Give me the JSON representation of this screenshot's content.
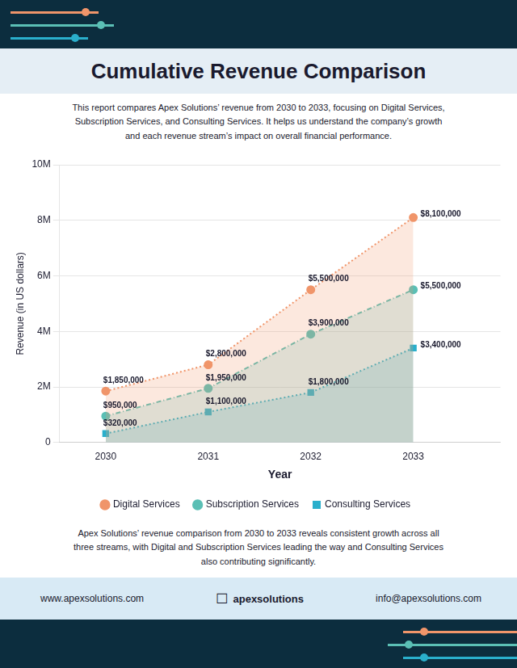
{
  "chart_data": {
    "type": "area",
    "title": "Cumulative Revenue Comparison",
    "subtitle": "This report compares Apex Solutions’ revenue from 2030 to 2033, focusing on Digital Services,\nSubscription Services, and Consulting Services. It helps us understand the company’s growth\nand each revenue stream’s impact on overall financial performance.",
    "x": [
      2030,
      2031,
      2032,
      2033
    ],
    "series": [
      {
        "name": "Digital Services",
        "color": "#F0956A",
        "marker": "circle",
        "line_style": "dotted",
        "values": [
          1850000,
          2800000,
          5500000,
          8100000
        ],
        "value_labels": [
          "$1,850,000",
          "$2,800,000",
          "$5,500,000",
          "$8,100,000"
        ]
      },
      {
        "name": "Subscription Services",
        "color": "#5BBFB5",
        "marker": "circle",
        "line_style": "dashdot",
        "values": [
          950000,
          1950000,
          3900000,
          5500000
        ],
        "value_labels": [
          "$950,000",
          "$1,950,000",
          "$3,900,000",
          "$5,500,000"
        ]
      },
      {
        "name": "Consulting Services",
        "color": "#2AAFCC",
        "marker": "square",
        "line_style": "dotted",
        "values": [
          320000,
          1100000,
          1800000,
          3400000
        ],
        "value_labels": [
          "$320,000",
          "$1,100,000",
          "$1,800,000",
          "$3,400,000"
        ]
      }
    ],
    "xlabel": "Year",
    "ylabel": "Revenue (in US dollars)",
    "xlim": [
      2029.55,
      2033.85
    ],
    "xticks": [
      2030,
      2031,
      2032,
      2033
    ],
    "ylim": [
      0,
      10000000
    ],
    "yticks": [
      0,
      {
        "value": 2000000,
        "label": "2M"
      },
      {
        "value": 4000000,
        "label": "4M"
      },
      {
        "value": 6000000,
        "label": "6M"
      },
      {
        "value": 8000000,
        "label": "8M"
      },
      {
        "value": 10000000,
        "label": "10M"
      }
    ],
    "grid": true,
    "legend": "bottom",
    "data_labels": true,
    "footer_text": "Apex Solutions’ revenue comparison from 2030 to 2033 reveals consistent growth across all\nthree streams, with Digital and Subscription Services leading the way and Consulting Services\nalso contributing significantly.",
    "website": "www.apexsolutions.com",
    "brand_icon": "☐",
    "brand": "apexsolutions",
    "email": "info@apexsolutions.com"
  }
}
